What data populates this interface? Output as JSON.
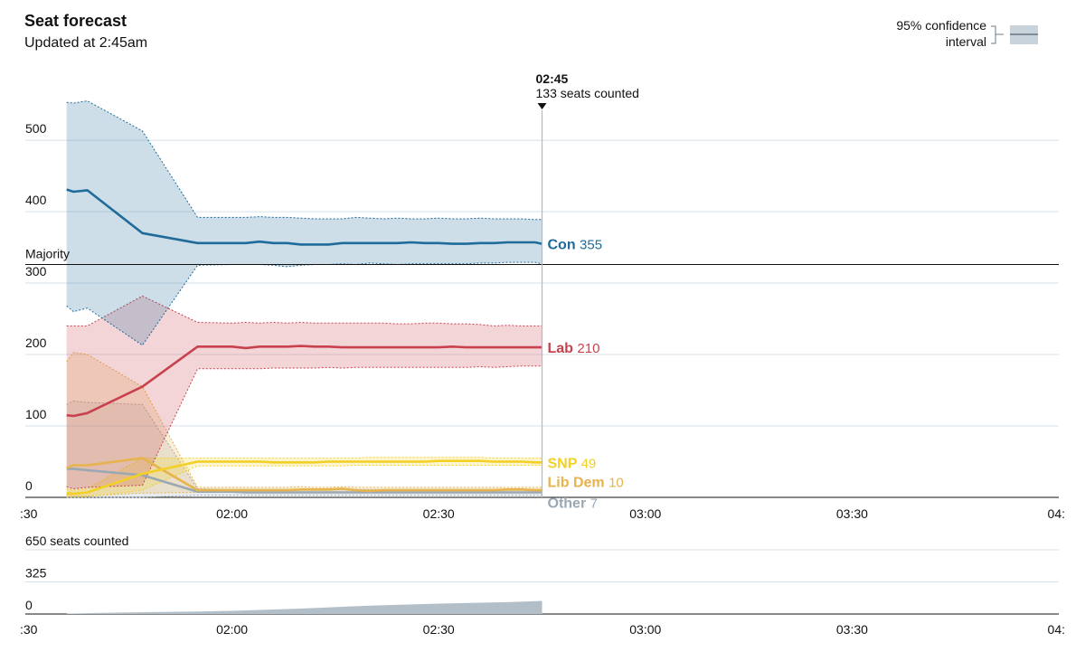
{
  "header": {
    "title": "Seat forecast",
    "subtitle": "Updated at 2:45am"
  },
  "legend": {
    "line1": "95% confidence",
    "line2": "interval"
  },
  "marker": {
    "time": "02:45",
    "seats_label": "133 seats counted"
  },
  "colors": {
    "con": "#1f6b99",
    "lab": "#c8424e",
    "snp": "#f2d024",
    "libdem": "#e6b34d",
    "other": "#9aa8b5",
    "grid": "#d7e2ea",
    "counted": "#b2bfc9"
  },
  "chart_data": [
    {
      "type": "line",
      "title": "Seat forecast",
      "x_ticks": [
        ":30",
        "02:00",
        "02:30",
        "03:00",
        "03:30",
        "04:"
      ],
      "x_tick_minutes": [
        30,
        60,
        90,
        120,
        150,
        180
      ],
      "xlim_minutes": [
        30,
        180
      ],
      "ylim": [
        0,
        590
      ],
      "y_ticks": [
        0,
        100,
        200,
        300,
        400,
        500
      ],
      "y_tick_labels": [
        "0",
        "100",
        "200",
        "300",
        "400",
        "500"
      ],
      "majority": {
        "label": "Majority",
        "value": 326
      },
      "marker_minute": 105,
      "x_minutes": [
        36,
        37,
        39,
        47,
        55,
        60,
        62,
        64,
        66,
        68,
        70,
        72,
        74,
        76,
        78,
        80,
        82,
        84,
        86,
        88,
        90,
        92,
        94,
        96,
        98,
        100,
        102,
        104,
        105
      ],
      "series": [
        {
          "key": "con",
          "name": "Con",
          "label_value": "355",
          "values": [
            431,
            428,
            430,
            370,
            356,
            356,
            356,
            358,
            356,
            356,
            354,
            354,
            354,
            356,
            356,
            356,
            356,
            356,
            357,
            356,
            356,
            355,
            355,
            356,
            356,
            357,
            357,
            357,
            355
          ],
          "upper": [
            553,
            552,
            555,
            513,
            392,
            392,
            392,
            393,
            392,
            392,
            391,
            390,
            390,
            390,
            392,
            391,
            390,
            391,
            390,
            390,
            391,
            390,
            390,
            391,
            390,
            390,
            390,
            389,
            389
          ],
          "lower": [
            268,
            260,
            265,
            213,
            325,
            326,
            326,
            326,
            325,
            323,
            325,
            326,
            326,
            327,
            326,
            328,
            327,
            326,
            327,
            327,
            327,
            327,
            327,
            328,
            328,
            329,
            329,
            329,
            327
          ]
        },
        {
          "key": "lab",
          "name": "Lab",
          "label_value": "210",
          "values": [
            115,
            114,
            118,
            155,
            211,
            211,
            209,
            211,
            211,
            211,
            212,
            211,
            211,
            210,
            210,
            210,
            210,
            210,
            210,
            210,
            210,
            211,
            210,
            210,
            210,
            210,
            210,
            210,
            210
          ],
          "upper": [
            240,
            240,
            240,
            282,
            245,
            244,
            245,
            244,
            245,
            244,
            245,
            244,
            244,
            244,
            244,
            244,
            244,
            243,
            243,
            244,
            244,
            243,
            243,
            242,
            240,
            241,
            240,
            240,
            240
          ],
          "lower": [
            15,
            12,
            14,
            17,
            180,
            180,
            180,
            180,
            181,
            181,
            181,
            181,
            182,
            181,
            182,
            182,
            182,
            182,
            182,
            182,
            182,
            182,
            182,
            183,
            182,
            183,
            184,
            184,
            184
          ]
        },
        {
          "key": "snp",
          "name": "SNP",
          "label_value": "49",
          "values": [
            6,
            5,
            7,
            33,
            50,
            50,
            50,
            50,
            49,
            49,
            49,
            49,
            50,
            50,
            50,
            50,
            50,
            50,
            50,
            50,
            51,
            51,
            51,
            51,
            50,
            50,
            50,
            49,
            49
          ],
          "upper": [
            12,
            10,
            12,
            55,
            55,
            55,
            55,
            55,
            55,
            55,
            55,
            55,
            55,
            55,
            55,
            56,
            56,
            56,
            56,
            56,
            56,
            56,
            56,
            56,
            55,
            55,
            55,
            55,
            55
          ],
          "lower": [
            1,
            1,
            1,
            10,
            44,
            44,
            44,
            44,
            44,
            44,
            44,
            44,
            44,
            44,
            45,
            45,
            45,
            45,
            45,
            45,
            45,
            45,
            45,
            45,
            45,
            45,
            45,
            45,
            45
          ]
        },
        {
          "key": "libdem",
          "name": "Lib Dem",
          "label_value": "10",
          "values": [
            41,
            45,
            45,
            55,
            10,
            10,
            10,
            10,
            10,
            10,
            11,
            11,
            11,
            12,
            10,
            9,
            10,
            10,
            10,
            10,
            10,
            10,
            10,
            10,
            10,
            11,
            11,
            10,
            10
          ],
          "upper": [
            190,
            203,
            200,
            155,
            14,
            14,
            14,
            14,
            14,
            14,
            15,
            14,
            14,
            15,
            14,
            14,
            14,
            14,
            14,
            14,
            14,
            14,
            14,
            14,
            14,
            14,
            14,
            14,
            14
          ],
          "lower": [
            3,
            2,
            2,
            6,
            7,
            7,
            7,
            7,
            7,
            7,
            7,
            7,
            7,
            7,
            7,
            7,
            7,
            7,
            7,
            7,
            7,
            7,
            7,
            7,
            7,
            7,
            7,
            7,
            7
          ]
        },
        {
          "key": "other",
          "name": "Other",
          "label_value": "7",
          "values": [
            40,
            40,
            38,
            31,
            8,
            8,
            7,
            7,
            7,
            7,
            7,
            7,
            7,
            7,
            7,
            7,
            7,
            7,
            7,
            7,
            7,
            7,
            7,
            7,
            7,
            7,
            7,
            7,
            7
          ],
          "upper": [
            130,
            135,
            133,
            130,
            12,
            11,
            11,
            11,
            11,
            11,
            11,
            11,
            11,
            11,
            11,
            11,
            11,
            11,
            11,
            11,
            11,
            11,
            11,
            11,
            11,
            11,
            11,
            11,
            11
          ],
          "lower": [
            0,
            0,
            0,
            0,
            3,
            3,
            3,
            3,
            3,
            3,
            3,
            3,
            3,
            3,
            3,
            3,
            3,
            3,
            3,
            3,
            3,
            3,
            3,
            3,
            3,
            3,
            3,
            3,
            3
          ]
        }
      ]
    },
    {
      "type": "area",
      "title": "seats counted",
      "ylim": [
        0,
        650
      ],
      "y_ticks": [
        0,
        325,
        650
      ],
      "y_tick_labels": [
        "0",
        "325",
        "650"
      ],
      "top_label_suffix": "seats counted",
      "x_ticks": [
        ":30",
        "02:00",
        "02:30",
        "03:00",
        "03:30",
        "04:"
      ],
      "x_tick_minutes": [
        30,
        60,
        90,
        120,
        150,
        180
      ],
      "xlim_minutes": [
        30,
        180
      ],
      "x_minutes": [
        36,
        40,
        47,
        55,
        60,
        70,
        80,
        90,
        100,
        105
      ],
      "values": [
        4,
        10,
        18,
        25,
        32,
        55,
        85,
        105,
        120,
        133
      ]
    }
  ]
}
